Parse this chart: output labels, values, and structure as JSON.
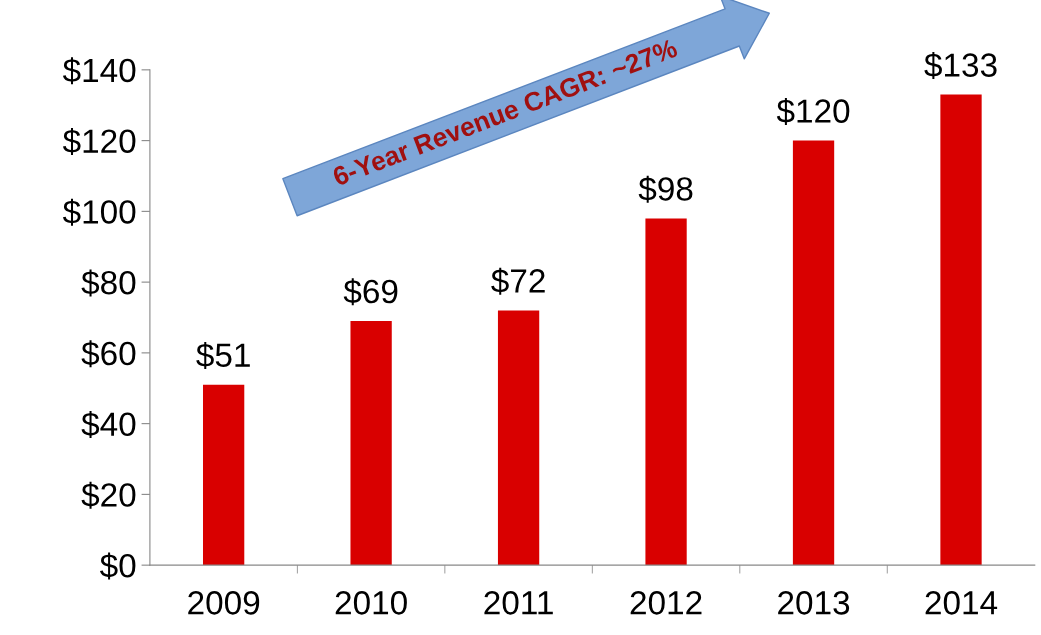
{
  "chart_data": {
    "type": "bar",
    "categories": [
      "2009",
      "2010",
      "2011",
      "2012",
      "2013",
      "2014"
    ],
    "values": [
      51,
      69,
      72,
      98,
      120,
      133
    ],
    "value_labels": [
      "$51",
      "$69",
      "$72",
      "$98",
      "$120",
      "$133"
    ],
    "color": "#d90000",
    "ylim": [
      0,
      140
    ],
    "yticks": [
      {
        "value": 0,
        "label": "$0"
      },
      {
        "value": 20,
        "label": "$20"
      },
      {
        "value": 40,
        "label": "$40"
      },
      {
        "value": 60,
        "label": "$60"
      },
      {
        "value": 80,
        "label": "$80"
      },
      {
        "value": 100,
        "label": "$100"
      },
      {
        "value": 120,
        "label": "$120"
      },
      {
        "value": 140,
        "label": "$140"
      }
    ],
    "annotations": [
      "6-Year Revenue CAGR: ~27%"
    ],
    "grid": false
  }
}
